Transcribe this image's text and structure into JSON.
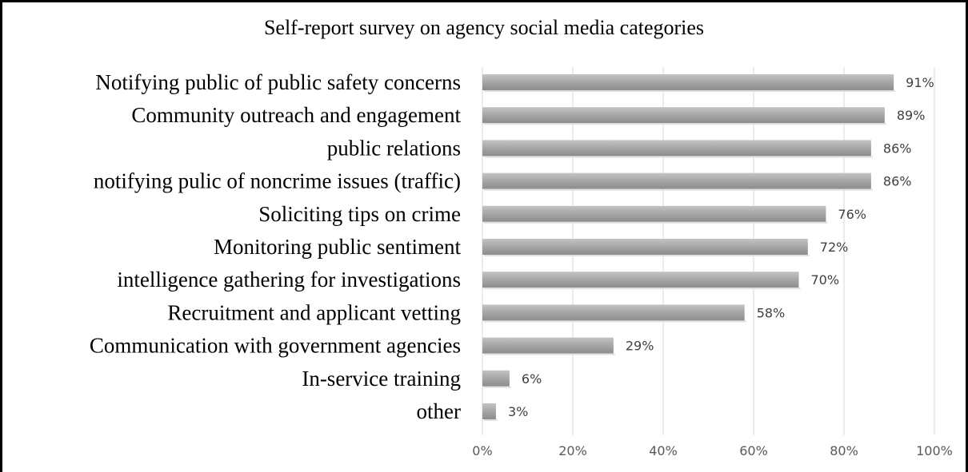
{
  "chart_data": {
    "type": "bar",
    "orientation": "horizontal",
    "title": "Self-report survey on agency social media categories",
    "categories": [
      "Notifying public of public safety concerns",
      "Community outreach and engagement",
      "public relations",
      "notifying pulic of noncrime issues (traffic)",
      "Soliciting tips on crime",
      "Monitoring public sentiment",
      "intelligence gathering for investigations",
      "Recruitment and applicant vetting",
      "Communication with government agencies",
      "In-service training",
      "other"
    ],
    "values": [
      91,
      89,
      86,
      86,
      76,
      72,
      70,
      58,
      29,
      6,
      3
    ],
    "data_labels": [
      "91%",
      "89%",
      "86%",
      "86%",
      "76%",
      "72%",
      "70%",
      "58%",
      "29%",
      "6%",
      "3%"
    ],
    "xlim": [
      0,
      100
    ],
    "x_ticks": [
      0,
      20,
      40,
      60,
      80,
      100
    ],
    "x_tick_labels": [
      "0%",
      "20%",
      "40%",
      "60%",
      "80%",
      "100%"
    ],
    "xlabel": "",
    "ylabel": "",
    "grid": "vertical",
    "legend": "none",
    "bar_color": "#a6a6a6",
    "grid_color": "#d9d9d9"
  }
}
